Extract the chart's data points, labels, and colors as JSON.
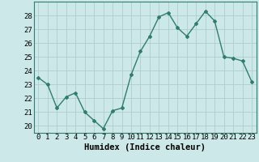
{
  "x": [
    0,
    1,
    2,
    3,
    4,
    5,
    6,
    7,
    8,
    9,
    10,
    11,
    12,
    13,
    14,
    15,
    16,
    17,
    18,
    19,
    20,
    21,
    22,
    23
  ],
  "y": [
    23.5,
    23.0,
    21.3,
    22.1,
    22.4,
    21.0,
    20.4,
    19.8,
    21.1,
    21.3,
    23.7,
    25.4,
    26.5,
    27.9,
    28.2,
    27.1,
    26.5,
    27.4,
    28.3,
    27.6,
    25.0,
    24.9,
    24.7,
    23.2
  ],
  "line_color": "#2e7d6e",
  "marker": "D",
  "marker_size": 2.0,
  "bg_color": "#cce8e8",
  "grid_color": "#b0cccc",
  "xlabel": "Humidex (Indice chaleur)",
  "ylim": [
    19.5,
    29.0
  ],
  "xlim": [
    -0.5,
    23.5
  ],
  "yticks": [
    20,
    21,
    22,
    23,
    24,
    25,
    26,
    27,
    28
  ],
  "xticks": [
    0,
    1,
    2,
    3,
    4,
    5,
    6,
    7,
    8,
    9,
    10,
    11,
    12,
    13,
    14,
    15,
    16,
    17,
    18,
    19,
    20,
    21,
    22,
    23
  ],
  "tick_fontsize": 6.5,
  "xlabel_fontsize": 7.5,
  "line_width": 1.0
}
